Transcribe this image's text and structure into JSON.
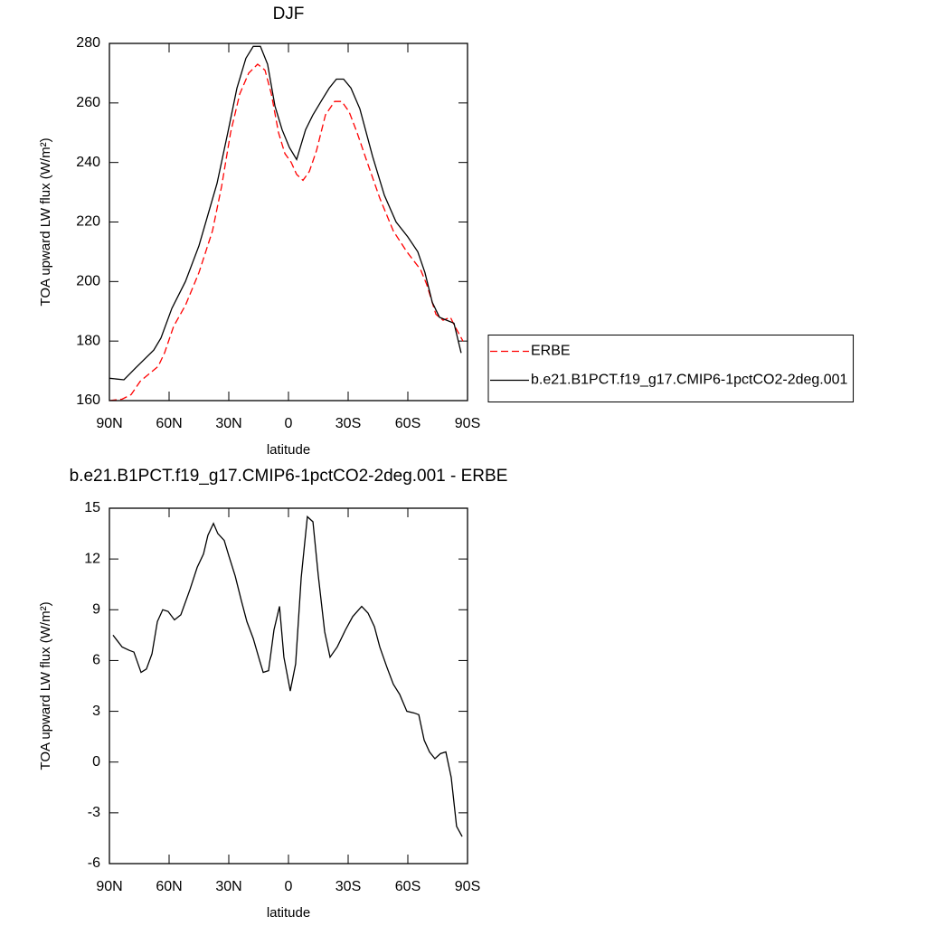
{
  "chart_data": [
    {
      "type": "line",
      "title": "DJF",
      "xlabel": "latitude",
      "ylabel": "TOA upward LW flux (W/m²)",
      "xlim": [
        90,
        -90
      ],
      "xticks": [
        {
          "value": 90,
          "label": "90N"
        },
        {
          "value": 60,
          "label": "60N"
        },
        {
          "value": 30,
          "label": "30N"
        },
        0,
        {
          "value": -30,
          "label": "30S"
        },
        {
          "value": -60,
          "label": "60S"
        },
        {
          "value": -90,
          "label": "90S"
        }
      ],
      "ylim": [
        160,
        280
      ],
      "yticks": [
        160,
        180,
        200,
        220,
        240,
        260,
        280
      ],
      "legend": "right",
      "series": [
        {
          "name": "ERBE",
          "color": "#ff0000",
          "line_style": "dashed",
          "x": [
            90,
            83.6,
            79.1,
            74.5,
            70,
            65.5,
            62.3,
            57.7,
            51.8,
            45,
            38.2,
            33.6,
            29.1,
            24.5,
            20,
            15.5,
            11.8,
            8.6,
            5,
            1.8,
            -1.4,
            -4.1,
            -7.3,
            -10.5,
            -14.1,
            -18.6,
            -23.2,
            -26.8,
            -30.5,
            -34.5,
            -39.1,
            -45.9,
            -52.7,
            -59.5,
            -66.4,
            -69.5,
            -74.1,
            -77.7,
            -81.4,
            -83.6,
            -87.7
          ],
          "values": [
            160,
            160.5,
            162,
            166.5,
            169,
            171.5,
            176,
            185,
            192,
            203,
            217,
            232,
            250,
            263,
            270,
            273,
            271,
            263,
            250,
            243,
            240,
            236,
            234,
            237,
            244,
            256,
            260.5,
            260.5,
            257,
            250,
            241,
            228,
            217,
            210,
            204,
            199,
            189,
            187,
            188,
            185,
            180
          ]
        },
        {
          "name": "b.e21.B1PCT.f19_g17.CMIP6-1pctCO2-2deg.001",
          "color": "#000000",
          "line_style": "solid",
          "x": [
            90,
            82.7,
            76.8,
            67.7,
            64.1,
            58.6,
            51.8,
            45,
            35.9,
            30.5,
            25.9,
            21.4,
            17.7,
            14.1,
            10.5,
            6.8,
            3.2,
            -0.5,
            -4.1,
            -8.6,
            -12.3,
            -16.8,
            -20.5,
            -24.1,
            -27.7,
            -31.4,
            -35.9,
            -42.3,
            -48.2,
            -54.1,
            -60,
            -65,
            -68.6,
            -72.3,
            -75.9,
            -79.5,
            -83.2,
            -86.8
          ],
          "values": [
            167.5,
            167,
            171,
            177,
            181,
            191,
            200,
            212,
            233,
            250,
            265,
            275,
            279,
            279,
            273,
            259,
            251,
            245,
            241,
            251,
            256,
            261,
            265,
            268,
            268,
            265,
            258,
            242,
            229,
            220,
            215,
            210,
            203,
            193,
            188,
            187,
            186,
            176
          ]
        }
      ]
    },
    {
      "type": "line",
      "title": "b.e21.B1PCT.f19_g17.CMIP6-1pctCO2-2deg.001 - ERBE",
      "xlabel": "latitude",
      "ylabel": "TOA upward LW flux (W/m²)",
      "xlim": [
        90,
        -90
      ],
      "xticks": [
        {
          "value": 90,
          "label": "90N"
        },
        {
          "value": 60,
          "label": "60N"
        },
        {
          "value": 30,
          "label": "30N"
        },
        0,
        {
          "value": -30,
          "label": "30S"
        },
        {
          "value": -60,
          "label": "60S"
        },
        {
          "value": -90,
          "label": "90S"
        }
      ],
      "ylim": [
        -6,
        15
      ],
      "yticks": [
        -6,
        -3,
        0,
        3,
        6,
        9,
        12,
        15
      ],
      "color": "#000000",
      "x": [
        88.2,
        83.6,
        80,
        77.7,
        74.1,
        71.4,
        68.6,
        65.9,
        63.2,
        60.5,
        57.3,
        54.1,
        49.5,
        45.9,
        42.7,
        40.5,
        37.7,
        35.5,
        32.3,
        30,
        26.8,
        23.6,
        20.9,
        17.7,
        14.5,
        12.7,
        10,
        7.3,
        4.5,
        2.3,
        -0.9,
        -3.6,
        -6.4,
        -9.5,
        -12.3,
        -15,
        -18.2,
        -20.9,
        -24.5,
        -28.6,
        -32.3,
        -36.8,
        -40,
        -43.2,
        -45.9,
        -49.5,
        -52.7,
        -55.9,
        -59.5,
        -63.2,
        -65.5,
        -68.2,
        -70.9,
        -73.6,
        -76.4,
        -79.1,
        -81.8,
        -84.5,
        -87.3
      ],
      "values": [
        7.5,
        6.8,
        6.6,
        6.5,
        5.3,
        5.5,
        6.4,
        8.3,
        9.0,
        8.9,
        8.4,
        8.7,
        10.2,
        11.5,
        12.3,
        13.4,
        14.1,
        13.5,
        13.1,
        12.2,
        11,
        9.5,
        8.3,
        7.3,
        6,
        5.3,
        5.4,
        7.8,
        9.2,
        6.2,
        4.2,
        5.8,
        10.9,
        14.5,
        14.2,
        11,
        7.7,
        6.2,
        6.8,
        7.8,
        8.6,
        9.2,
        8.8,
        8,
        6.8,
        5.6,
        4.6,
        4,
        3.0,
        2.9,
        2.8,
        1.3,
        0.6,
        0.2,
        0.5,
        0.6,
        -0.9,
        -3.8,
        -4.4
      ]
    }
  ]
}
